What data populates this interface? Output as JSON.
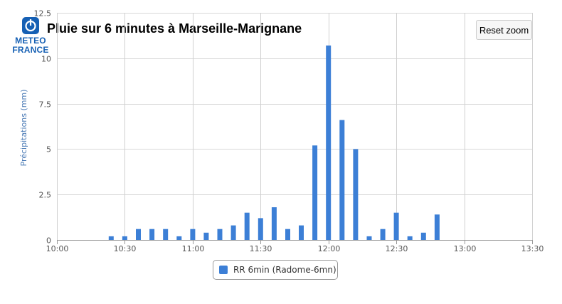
{
  "logo": {
    "line1": "METEO",
    "line2": "FRANCE"
  },
  "header": {
    "title": "Pluie sur 6 minutes à Marseille-Marignane",
    "reset_zoom_label": "Reset zoom"
  },
  "colors": {
    "bar": "#3c7fd6",
    "brand": "#1660b4",
    "ylabel": "#4a7ab5"
  },
  "legend": {
    "label": "RR 6min (Radome-6mn)"
  },
  "chart_data": {
    "type": "bar",
    "ylabel": "Précipitations (mm)",
    "xlabel": "",
    "xlim": [
      "10:00",
      "13:30"
    ],
    "ylim": [
      0,
      12.5
    ],
    "yticks": [
      "0",
      "2.5",
      "5",
      "7.5",
      "10",
      "12.5"
    ],
    "xticks": [
      "10:00",
      "10:30",
      "11:00",
      "11:30",
      "12:00",
      "12:30",
      "13:00",
      "13:30"
    ],
    "grid": true,
    "legend_position": "bottom-center",
    "series": [
      {
        "name": "RR 6min (Radome-6mn)",
        "x": [
          "10:24",
          "10:30",
          "10:36",
          "10:42",
          "10:48",
          "10:54",
          "11:00",
          "11:06",
          "11:12",
          "11:18",
          "11:24",
          "11:30",
          "11:36",
          "11:42",
          "11:48",
          "11:54",
          "12:00",
          "12:06",
          "12:12",
          "12:18",
          "12:24",
          "12:30",
          "12:36",
          "12:42",
          "12:48"
        ],
        "values": [
          0.2,
          0.2,
          0.6,
          0.6,
          0.6,
          0.2,
          0.6,
          0.4,
          0.6,
          0.8,
          1.5,
          1.2,
          1.8,
          0.6,
          0.8,
          5.2,
          10.7,
          6.6,
          5.0,
          0.2,
          0.6,
          1.5,
          0.2,
          0.4,
          1.4
        ]
      }
    ]
  }
}
